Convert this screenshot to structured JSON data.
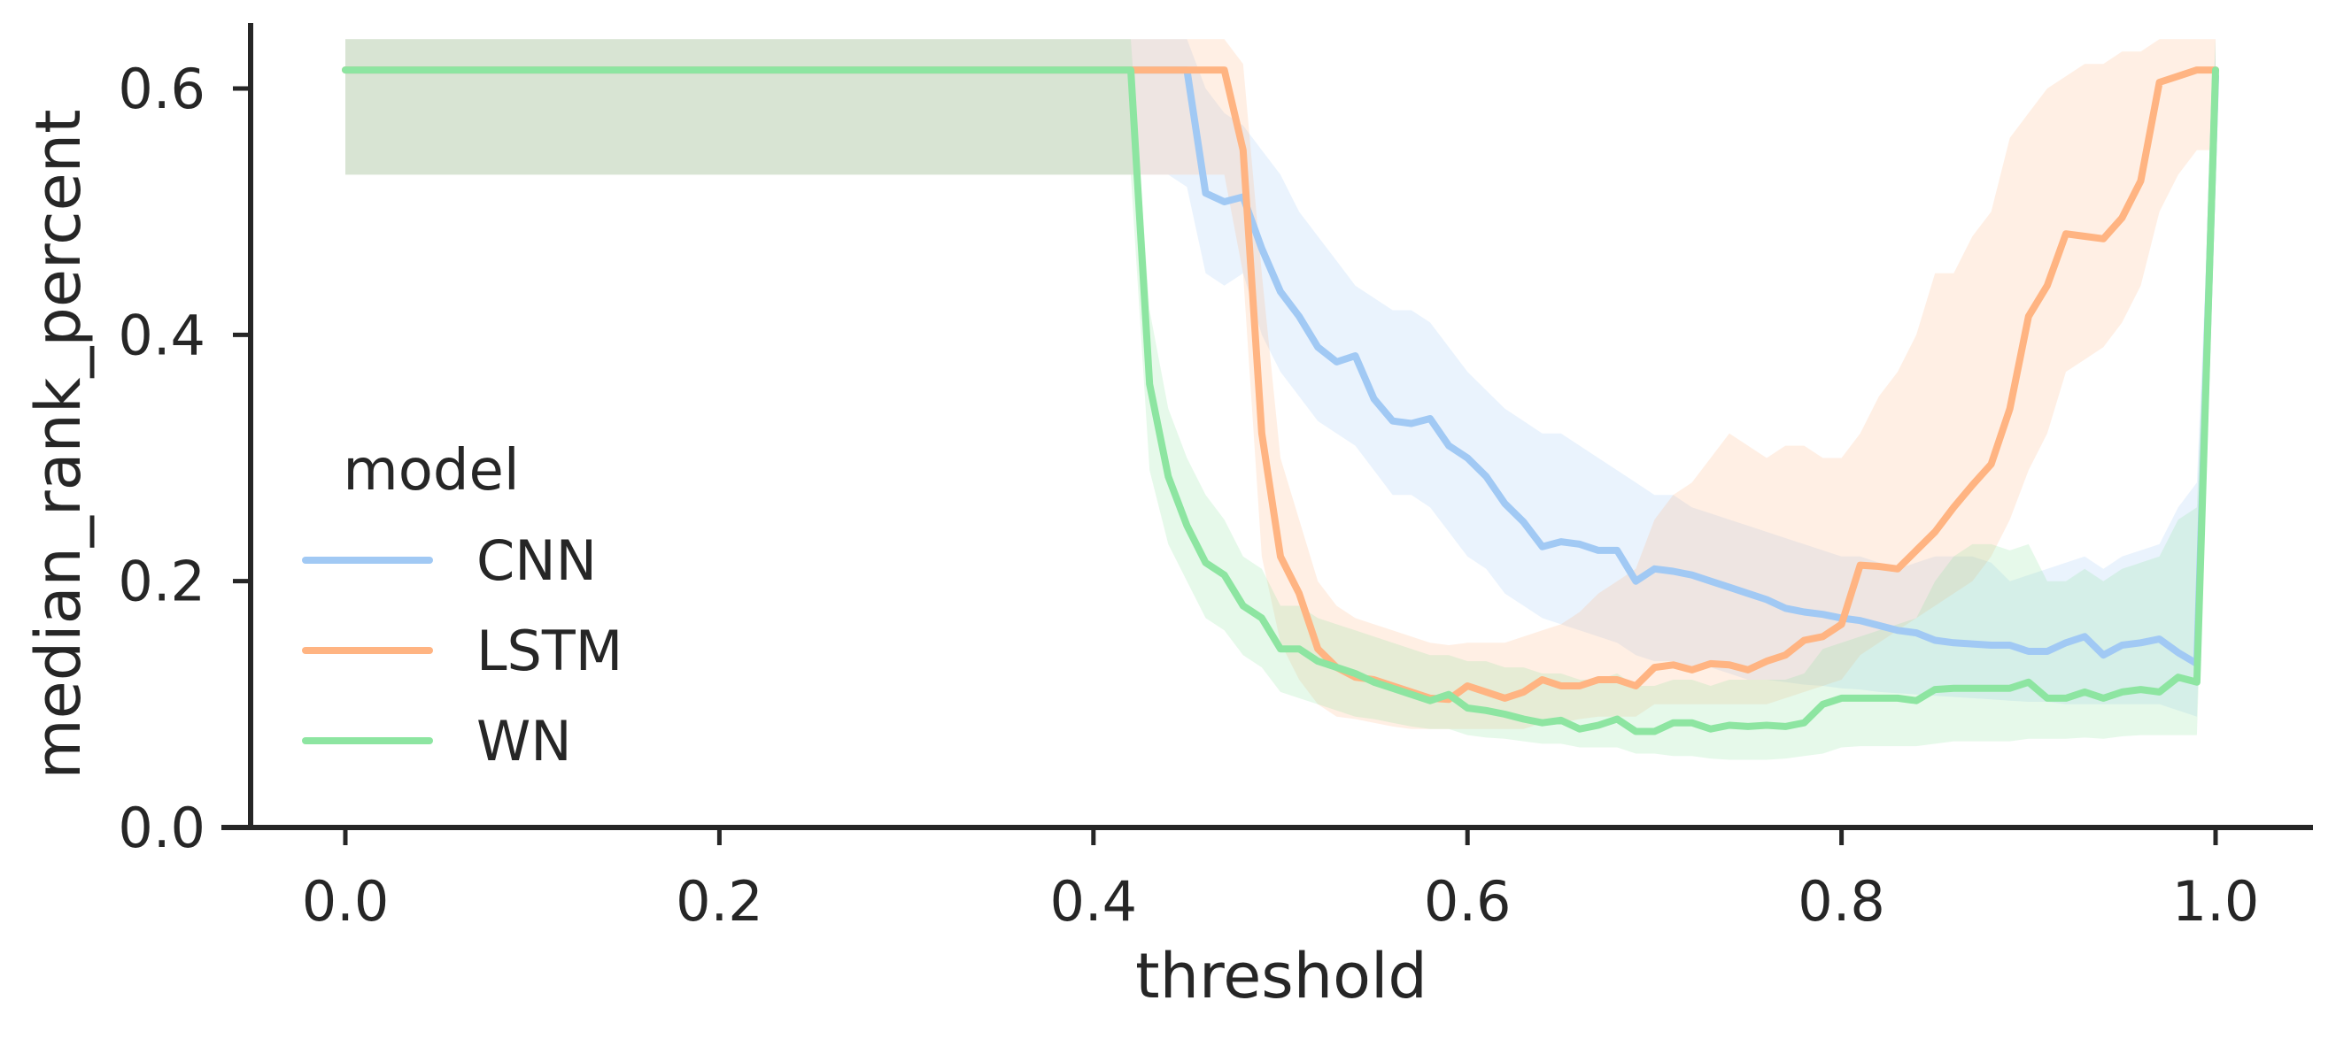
{
  "chart_data": {
    "type": "line",
    "xlabel": "threshold",
    "ylabel": "median_rank_percent",
    "xlim": [
      -0.05,
      1.05
    ],
    "ylim": [
      0.0,
      0.65
    ],
    "xticks": [
      0.0,
      0.2,
      0.4,
      0.6,
      0.8,
      1.0
    ],
    "xtick_labels": [
      "0.0",
      "0.2",
      "0.4",
      "0.6",
      "0.8",
      "1.0"
    ],
    "yticks": [
      0.0,
      0.2,
      0.4,
      0.6
    ],
    "ytick_labels": [
      "0.0",
      "0.2",
      "0.4",
      "0.6"
    ],
    "grid": false,
    "legend": {
      "title": "model",
      "placement": "center-left"
    },
    "x": [
      0.0,
      0.41,
      0.42,
      0.43,
      0.44,
      0.45,
      0.46,
      0.47,
      0.48,
      0.49,
      0.5,
      0.51,
      0.52,
      0.53,
      0.54,
      0.55,
      0.56,
      0.57,
      0.58,
      0.59,
      0.6,
      0.61,
      0.62,
      0.63,
      0.64,
      0.65,
      0.66,
      0.67,
      0.68,
      0.69,
      0.7,
      0.71,
      0.72,
      0.73,
      0.74,
      0.75,
      0.76,
      0.77,
      0.78,
      0.79,
      0.8,
      0.81,
      0.82,
      0.83,
      0.84,
      0.85,
      0.86,
      0.87,
      0.88,
      0.89,
      0.9,
      0.91,
      0.92,
      0.93,
      0.94,
      0.95,
      0.96,
      0.97,
      0.98,
      0.99,
      1.0
    ],
    "series": [
      {
        "name": "CNN",
        "color": "#a1c9f4",
        "values": [
          0.615,
          0.615,
          0.615,
          0.615,
          0.615,
          0.615,
          0.515,
          0.508,
          0.512,
          0.47,
          0.435,
          0.415,
          0.39,
          0.378,
          0.383,
          0.348,
          0.33,
          0.328,
          0.332,
          0.31,
          0.3,
          0.285,
          0.263,
          0.248,
          0.228,
          0.232,
          0.23,
          0.225,
          0.225,
          0.2,
          0.21,
          0.208,
          0.205,
          0.2,
          0.195,
          0.19,
          0.185,
          0.178,
          0.175,
          0.173,
          0.17,
          0.168,
          0.164,
          0.16,
          0.158,
          0.152,
          0.15,
          0.149,
          0.148,
          0.148,
          0.143,
          0.143,
          0.15,
          0.155,
          0.14,
          0.148,
          0.15,
          0.153,
          0.142,
          0.133,
          0.61
        ],
        "lower": [
          0.53,
          0.53,
          0.53,
          0.53,
          0.53,
          0.52,
          0.45,
          0.44,
          0.45,
          0.4,
          0.37,
          0.35,
          0.33,
          0.32,
          0.31,
          0.29,
          0.27,
          0.27,
          0.26,
          0.24,
          0.22,
          0.21,
          0.19,
          0.18,
          0.17,
          0.165,
          0.16,
          0.155,
          0.15,
          0.14,
          0.135,
          0.135,
          0.13,
          0.13,
          0.125,
          0.12,
          0.12,
          0.118,
          0.116,
          0.115,
          0.113,
          0.112,
          0.11,
          0.109,
          0.108,
          0.107,
          0.106,
          0.105,
          0.104,
          0.103,
          0.102,
          0.102,
          0.1,
          0.1,
          0.1,
          0.1,
          0.1,
          0.1,
          0.095,
          0.09,
          0.53
        ],
        "upper": [
          0.64,
          0.64,
          0.64,
          0.64,
          0.64,
          0.64,
          0.6,
          0.58,
          0.57,
          0.55,
          0.53,
          0.5,
          0.48,
          0.46,
          0.44,
          0.43,
          0.42,
          0.42,
          0.41,
          0.39,
          0.37,
          0.355,
          0.34,
          0.33,
          0.32,
          0.32,
          0.31,
          0.3,
          0.29,
          0.28,
          0.27,
          0.27,
          0.26,
          0.255,
          0.25,
          0.245,
          0.24,
          0.235,
          0.23,
          0.225,
          0.22,
          0.22,
          0.215,
          0.21,
          0.215,
          0.22,
          0.22,
          0.22,
          0.215,
          0.2,
          0.205,
          0.21,
          0.215,
          0.22,
          0.21,
          0.22,
          0.225,
          0.23,
          0.26,
          0.28,
          0.64
        ]
      },
      {
        "name": "LSTM",
        "color": "#ffb482",
        "values": [
          0.615,
          0.615,
          0.615,
          0.615,
          0.615,
          0.615,
          0.615,
          0.615,
          0.55,
          0.32,
          0.22,
          0.19,
          0.145,
          0.13,
          0.122,
          0.12,
          0.115,
          0.11,
          0.105,
          0.104,
          0.115,
          0.11,
          0.105,
          0.11,
          0.12,
          0.115,
          0.115,
          0.12,
          0.12,
          0.115,
          0.13,
          0.132,
          0.128,
          0.133,
          0.132,
          0.128,
          0.135,
          0.14,
          0.152,
          0.155,
          0.165,
          0.213,
          0.212,
          0.21,
          0.225,
          0.24,
          0.26,
          0.278,
          0.295,
          0.34,
          0.415,
          0.44,
          0.482,
          0.48,
          0.478,
          0.495,
          0.525,
          0.605,
          0.61,
          0.615,
          0.615
        ],
        "lower": [
          0.53,
          0.53,
          0.53,
          0.53,
          0.53,
          0.53,
          0.53,
          0.53,
          0.45,
          0.22,
          0.15,
          0.12,
          0.1,
          0.09,
          0.088,
          0.085,
          0.082,
          0.08,
          0.08,
          0.08,
          0.08,
          0.08,
          0.08,
          0.08,
          0.085,
          0.085,
          0.088,
          0.09,
          0.09,
          0.09,
          0.1,
          0.1,
          0.1,
          0.1,
          0.1,
          0.1,
          0.1,
          0.105,
          0.11,
          0.115,
          0.12,
          0.14,
          0.15,
          0.16,
          0.17,
          0.18,
          0.19,
          0.2,
          0.22,
          0.25,
          0.29,
          0.32,
          0.37,
          0.38,
          0.39,
          0.41,
          0.44,
          0.5,
          0.53,
          0.55,
          0.55
        ],
        "upper": [
          0.64,
          0.64,
          0.64,
          0.64,
          0.64,
          0.64,
          0.64,
          0.64,
          0.62,
          0.45,
          0.3,
          0.25,
          0.2,
          0.18,
          0.17,
          0.165,
          0.16,
          0.155,
          0.15,
          0.148,
          0.15,
          0.15,
          0.15,
          0.155,
          0.16,
          0.165,
          0.175,
          0.19,
          0.2,
          0.21,
          0.25,
          0.27,
          0.28,
          0.3,
          0.32,
          0.31,
          0.3,
          0.31,
          0.31,
          0.3,
          0.3,
          0.32,
          0.35,
          0.37,
          0.4,
          0.45,
          0.45,
          0.48,
          0.5,
          0.56,
          0.58,
          0.6,
          0.61,
          0.62,
          0.62,
          0.63,
          0.63,
          0.64,
          0.64,
          0.64,
          0.64
        ]
      },
      {
        "name": "WN",
        "color": "#8de5a1",
        "values": [
          0.615,
          0.615,
          0.615,
          0.36,
          0.285,
          0.245,
          0.215,
          0.205,
          0.18,
          0.17,
          0.145,
          0.145,
          0.135,
          0.13,
          0.125,
          0.118,
          0.113,
          0.108,
          0.103,
          0.108,
          0.097,
          0.095,
          0.092,
          0.088,
          0.085,
          0.087,
          0.08,
          0.083,
          0.088,
          0.078,
          0.078,
          0.085,
          0.085,
          0.08,
          0.083,
          0.082,
          0.083,
          0.082,
          0.085,
          0.1,
          0.105,
          0.105,
          0.105,
          0.105,
          0.103,
          0.112,
          0.113,
          0.113,
          0.113,
          0.113,
          0.118,
          0.105,
          0.105,
          0.11,
          0.105,
          0.11,
          0.112,
          0.11,
          0.122,
          0.118,
          0.615
        ],
        "lower": [
          0.53,
          0.53,
          0.53,
          0.29,
          0.23,
          0.2,
          0.17,
          0.16,
          0.14,
          0.13,
          0.11,
          0.105,
          0.1,
          0.095,
          0.09,
          0.088,
          0.085,
          0.082,
          0.08,
          0.08,
          0.075,
          0.073,
          0.072,
          0.07,
          0.068,
          0.068,
          0.065,
          0.065,
          0.065,
          0.06,
          0.06,
          0.058,
          0.058,
          0.056,
          0.055,
          0.055,
          0.055,
          0.056,
          0.058,
          0.06,
          0.065,
          0.066,
          0.066,
          0.066,
          0.066,
          0.068,
          0.07,
          0.07,
          0.07,
          0.07,
          0.072,
          0.072,
          0.072,
          0.073,
          0.072,
          0.074,
          0.075,
          0.075,
          0.075,
          0.075,
          0.53
        ],
        "upper": [
          0.64,
          0.64,
          0.64,
          0.42,
          0.34,
          0.3,
          0.27,
          0.25,
          0.22,
          0.21,
          0.18,
          0.18,
          0.17,
          0.165,
          0.16,
          0.155,
          0.15,
          0.145,
          0.14,
          0.14,
          0.135,
          0.135,
          0.13,
          0.13,
          0.125,
          0.125,
          0.12,
          0.12,
          0.125,
          0.115,
          0.115,
          0.12,
          0.12,
          0.115,
          0.12,
          0.12,
          0.12,
          0.12,
          0.125,
          0.145,
          0.15,
          0.155,
          0.16,
          0.165,
          0.17,
          0.2,
          0.22,
          0.23,
          0.23,
          0.225,
          0.23,
          0.2,
          0.2,
          0.21,
          0.2,
          0.21,
          0.215,
          0.22,
          0.25,
          0.26,
          0.64
        ]
      }
    ]
  }
}
